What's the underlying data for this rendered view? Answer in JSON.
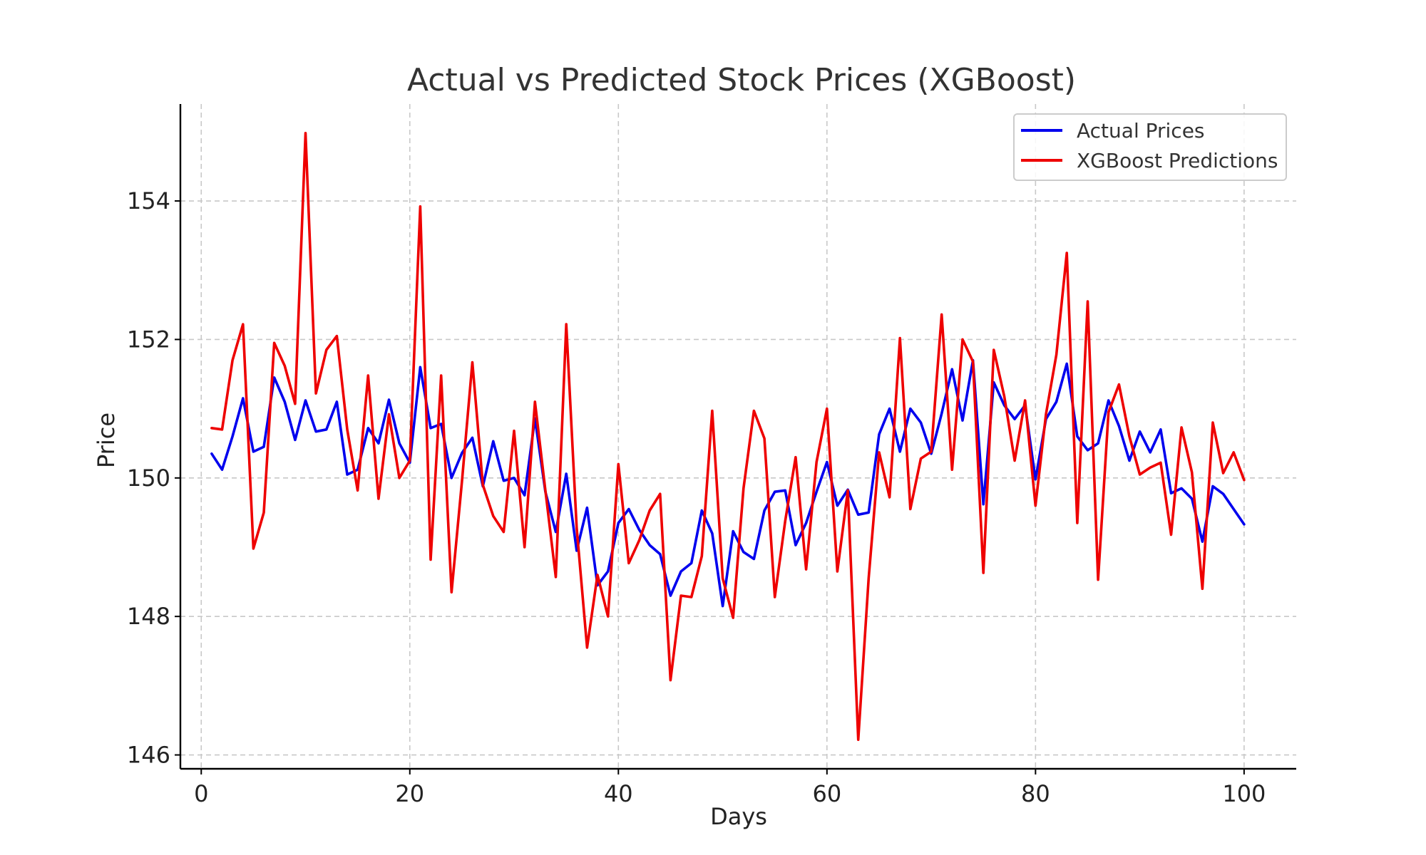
{
  "chart_data": {
    "type": "line",
    "title": "Actual vs Predicted Stock Prices (XGBoost)",
    "xlabel": "Days",
    "ylabel": "Price",
    "xlim": [
      -2,
      105
    ],
    "ylim": [
      145.8,
      155.4
    ],
    "xticks": [
      0,
      20,
      40,
      60,
      80,
      100
    ],
    "yticks": [
      146,
      148,
      150,
      152,
      154
    ],
    "grid": true,
    "legend_position": "top-right",
    "x": [
      1,
      2,
      3,
      4,
      5,
      6,
      7,
      8,
      9,
      10,
      11,
      12,
      13,
      14,
      15,
      16,
      17,
      18,
      19,
      20,
      21,
      22,
      23,
      24,
      25,
      26,
      27,
      28,
      29,
      30,
      31,
      32,
      33,
      34,
      35,
      36,
      37,
      38,
      39,
      40,
      41,
      42,
      43,
      44,
      45,
      46,
      47,
      48,
      49,
      50,
      51,
      52,
      53,
      54,
      55,
      56,
      57,
      58,
      59,
      60,
      61,
      62,
      63,
      64,
      65,
      66,
      67,
      68,
      69,
      70,
      71,
      72,
      73,
      74,
      75,
      76,
      77,
      78,
      79,
      80,
      81,
      82,
      83,
      84,
      85,
      86,
      87,
      88,
      89,
      90,
      91,
      92,
      93,
      94,
      95,
      96,
      97,
      98,
      99,
      100
    ],
    "series": [
      {
        "name": "Actual Prices",
        "color": "#0000ee",
        "values": [
          150.35,
          150.12,
          150.6,
          151.15,
          150.38,
          150.45,
          151.45,
          151.1,
          150.55,
          151.12,
          150.67,
          150.7,
          151.1,
          150.05,
          150.12,
          150.72,
          150.5,
          151.13,
          150.5,
          150.22,
          151.6,
          150.72,
          150.78,
          150.0,
          150.36,
          150.58,
          149.88,
          150.53,
          149.96,
          150.0,
          149.75,
          150.86,
          149.8,
          149.22,
          150.06,
          148.95,
          149.57,
          148.45,
          148.65,
          149.35,
          149.55,
          149.25,
          149.03,
          148.9,
          148.3,
          148.65,
          148.77,
          149.53,
          149.2,
          148.15,
          149.23,
          148.93,
          148.83,
          149.53,
          149.8,
          149.82,
          149.03,
          149.35,
          149.8,
          150.23,
          149.6,
          149.83,
          149.47,
          149.5,
          150.63,
          151.0,
          150.38,
          151.0,
          150.8,
          150.35,
          150.93,
          151.57,
          150.83,
          151.7,
          149.62,
          151.38,
          151.05,
          150.85,
          151.05,
          149.98,
          150.85,
          151.1,
          151.65,
          150.6,
          150.4,
          150.5,
          151.12,
          150.75,
          150.25,
          150.67,
          150.37,
          150.7,
          149.78,
          149.85,
          149.7,
          149.08,
          149.88,
          149.77,
          149.55,
          149.33
        ]
      },
      {
        "name": "XGBoost Predictions",
        "color": "#ee0000",
        "values": [
          150.72,
          150.7,
          151.7,
          152.22,
          148.98,
          149.5,
          151.95,
          151.62,
          151.07,
          154.98,
          151.22,
          151.85,
          152.05,
          150.7,
          149.82,
          151.48,
          149.7,
          150.92,
          150.0,
          150.25,
          153.92,
          148.82,
          151.48,
          148.35,
          149.95,
          151.67,
          149.9,
          149.45,
          149.22,
          150.68,
          149.0,
          151.1,
          149.82,
          148.57,
          152.22,
          149.28,
          147.55,
          148.6,
          148.0,
          150.2,
          148.77,
          149.1,
          149.53,
          149.77,
          147.08,
          148.3,
          148.28,
          148.87,
          150.97,
          148.55,
          147.98,
          149.85,
          150.97,
          150.57,
          148.28,
          149.38,
          150.3,
          148.68,
          150.23,
          151.0,
          148.65,
          149.82,
          146.22,
          148.55,
          150.37,
          149.72,
          152.02,
          149.55,
          150.28,
          150.38,
          152.36,
          150.12,
          152.0,
          151.68,
          148.63,
          151.85,
          151.18,
          150.25,
          151.12,
          149.6,
          150.92,
          151.78,
          153.25,
          149.35,
          152.55,
          148.53,
          150.95,
          151.35,
          150.6,
          150.05,
          150.15,
          150.22,
          149.18,
          150.73,
          150.08,
          148.4,
          150.8,
          150.07,
          150.37,
          149.97
        ]
      }
    ]
  }
}
